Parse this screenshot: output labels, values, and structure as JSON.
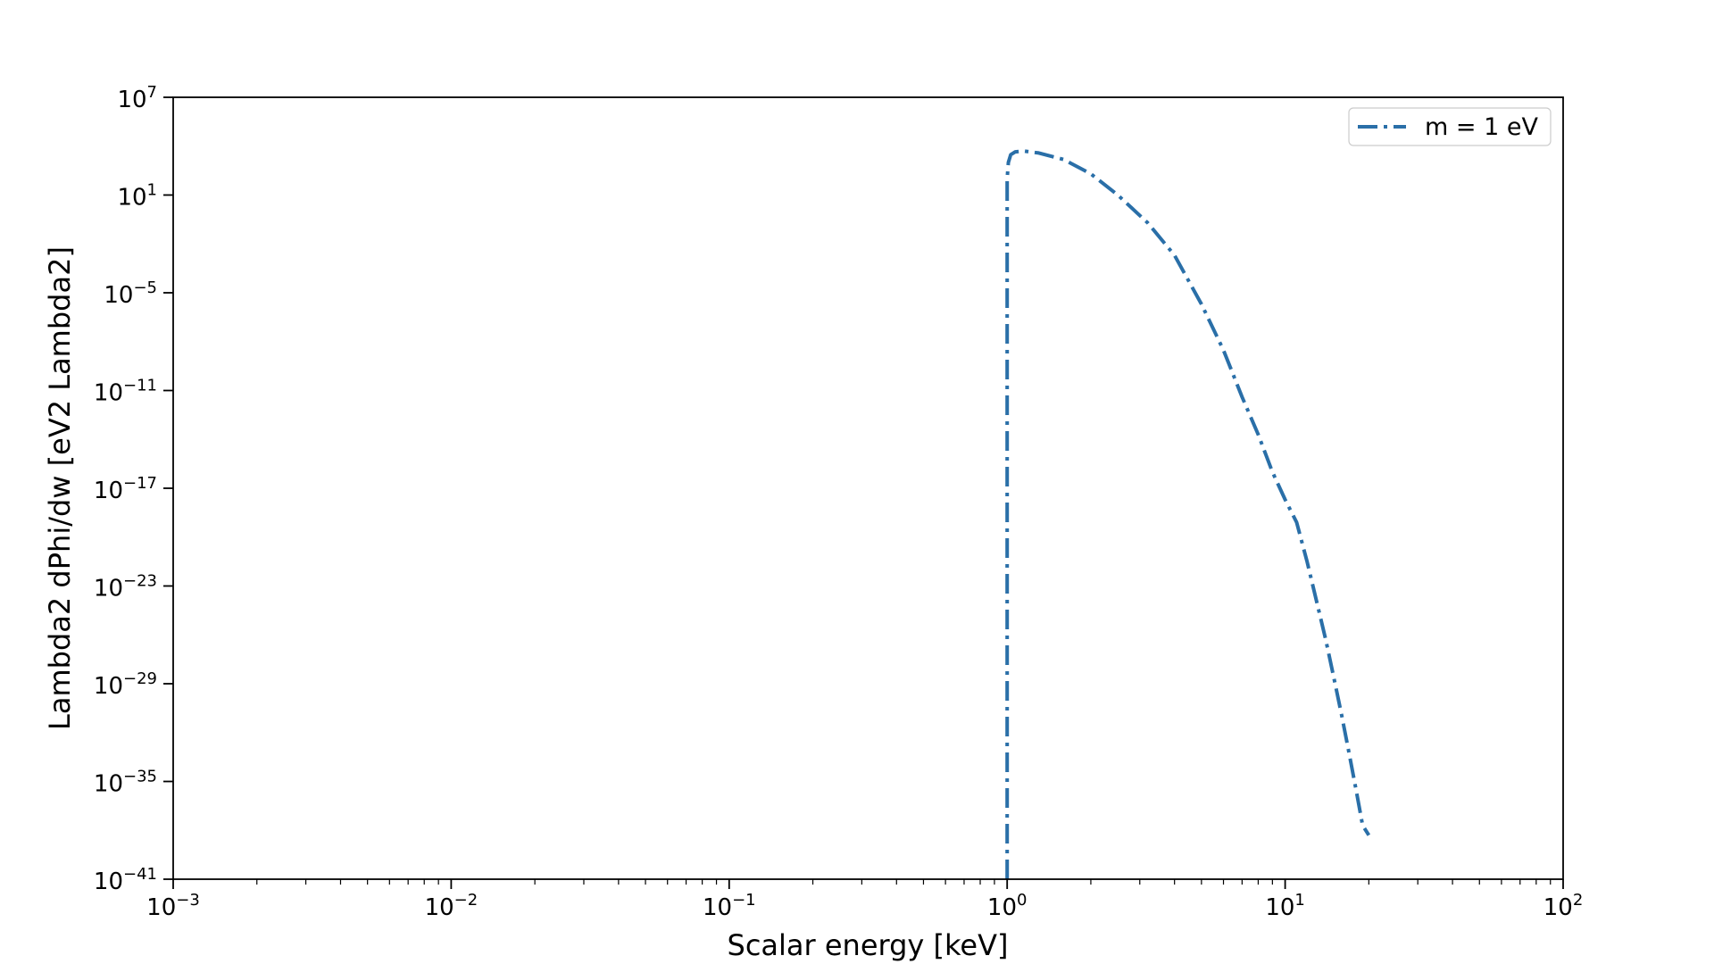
{
  "chart_data": {
    "type": "line",
    "title": "",
    "xlabel": "Scalar energy [keV]",
    "ylabel": "Lambda2 dPhi/dw [eV2 Lambda2]",
    "x_scale": "log",
    "y_scale": "log",
    "xlim": [
      0.001,
      100
    ],
    "ylim": [
      1e-41,
      10000000.0
    ],
    "x_ticks": [
      {
        "label": "10",
        "exp": "−3"
      },
      {
        "label": "10",
        "exp": "−2"
      },
      {
        "label": "10",
        "exp": "−1"
      },
      {
        "label": "10",
        "exp": "0"
      },
      {
        "label": "10",
        "exp": "1"
      },
      {
        "label": "10",
        "exp": "2"
      }
    ],
    "y_ticks": [
      {
        "label": "10",
        "exp": "7"
      },
      {
        "label": "10",
        "exp": "1"
      },
      {
        "label": "10",
        "exp": "−5"
      },
      {
        "label": "10",
        "exp": "−11"
      },
      {
        "label": "10",
        "exp": "−17"
      },
      {
        "label": "10",
        "exp": "−23"
      },
      {
        "label": "10",
        "exp": "−29"
      },
      {
        "label": "10",
        "exp": "−35"
      },
      {
        "label": "10",
        "exp": "−41"
      }
    ],
    "grid": false,
    "legend_position": "top-right",
    "series": [
      {
        "name": "m = 1 eV",
        "color": "#2a6fa8",
        "line_style": "dash-dot",
        "x": [
          1.0,
          1.0,
          1.01,
          1.03,
          1.07,
          1.15,
          1.3,
          1.6,
          2.0,
          2.5,
          3.2,
          4.0,
          5.0,
          6.0,
          7.0,
          8.0,
          9.0,
          10.0,
          11.0,
          12.0,
          13.0,
          14.0,
          15.0,
          16.0,
          17.0,
          18.0,
          19.0,
          20.0
        ],
        "y": [
          1e-41,
          100,
          1000,
          3000,
          4500,
          5000,
          3800,
          1500,
          200,
          10,
          0.2,
          0.002,
          2e-06,
          3e-09,
          4e-12,
          2e-14,
          1e-16,
          2e-18,
          8e-20,
          3e-22,
          1e-24,
          5e-27,
          2e-29,
          1e-31,
          5e-34,
          3e-36,
          2e-38,
          5e-39
        ]
      }
    ]
  }
}
